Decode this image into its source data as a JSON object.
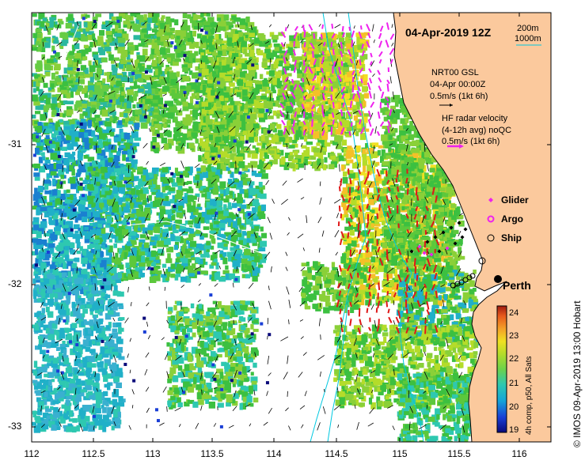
{
  "header": {
    "timestamp": "04-Apr-2019 12Z",
    "depth_legend": [
      "200m",
      "1000m"
    ]
  },
  "model_legend": {
    "line1": "NRT00 GSL",
    "line2": "04-Apr 00:00Z",
    "line3": "0.5m/s (1kt 6h)"
  },
  "radar_legend": {
    "line1": "HF radar velocity",
    "line2": "(4-12h avg) noQC",
    "line3": "0.5m/s (1kt 6h)"
  },
  "symbol_legend": {
    "glider": "Glider",
    "argo": "Argo",
    "ship": "Ship"
  },
  "place_label": "Perth",
  "colorbar": {
    "ticks": [
      "24",
      "23",
      "22",
      "21",
      "20",
      "19"
    ],
    "title": "4h comp, p50, All Sats",
    "colors": [
      "#0a0a7a",
      "#1a3fd6",
      "#14a4d8",
      "#2ec8b0",
      "#6cd24a",
      "#b4dc2a",
      "#f0e022",
      "#f4a028",
      "#e85a1c",
      "#a01a10"
    ]
  },
  "axes": {
    "x_ticks": [
      "112",
      "112.5",
      "113",
      "113.5",
      "114",
      "114.5",
      "115",
      "115.5",
      "116"
    ],
    "y_ticks": [
      "-31",
      "-32",
      "-33"
    ]
  },
  "credit": "© IMOS 09-Apr-2019 13:00 Hobart",
  "colors": {
    "land": "#fbc99d",
    "isobath_200": "#00c8e0",
    "isobath_1000": "#00c8e0",
    "radar_arrow": "#ee22ee",
    "glider": "#ee22ee"
  }
}
